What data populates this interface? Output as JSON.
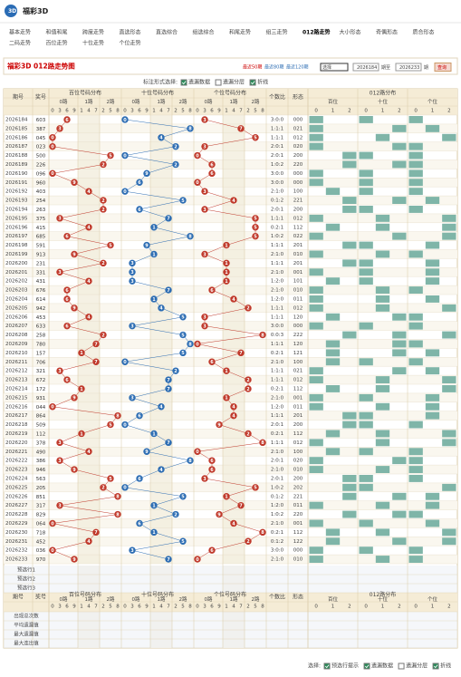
{
  "header": {
    "logo": "福彩3D"
  },
  "nav": [
    [
      {
        "text": "基本走势"
      },
      {
        "text": "和值和尾"
      },
      {
        "text": "跨度走势"
      },
      {
        "text": "直选形态"
      },
      {
        "text": "直选综合"
      },
      {
        "text": "组选综合"
      },
      {
        "text": "和尾走势"
      },
      {
        "text": "组三走势"
      },
      {
        "text": "012路走势",
        "active": true
      },
      {
        "text": "大小形态"
      },
      {
        "text": "奇偶形态"
      },
      {
        "text": "质合形态"
      }
    ],
    [
      {
        "text": "二码走势"
      },
      {
        "text": "百位走势"
      },
      {
        "text": "十位走势"
      },
      {
        "text": "个位走势"
      }
    ]
  ],
  "toolbar": {
    "title": "福彩3D 012路走势图",
    "periods": [
      "最近50期",
      "最近80期",
      "最近120期"
    ],
    "select": "选择",
    "from": "2026184",
    "between": "期至",
    "to": "2026233",
    "after": "期",
    "button": "查询"
  },
  "options": {
    "label": "标注形式选择:",
    "items": [
      {
        "text": "遗漏数据",
        "checked": true
      },
      {
        "text": "遗漏分层",
        "checked": false
      },
      {
        "text": "折线",
        "checked": true
      }
    ]
  },
  "table": {
    "columns": {
      "issue": "期号",
      "draw": "奖号",
      "positions": [
        "百位号码分布",
        "十位号码分布",
        "个位号码分布"
      ],
      "ratio": "个数比",
      "shape": "形态",
      "route": "012路分布"
    },
    "groups": [
      "0路",
      "1路",
      "2路"
    ],
    "digit_order": [
      0,
      3,
      6,
      9,
      1,
      4,
      7,
      2,
      5,
      8
    ],
    "route_positions": [
      "百位",
      "十位",
      "个位"
    ],
    "route_digits": [
      0,
      1,
      2
    ],
    "colors": [
      "#c0392b",
      "#2d6db3",
      "#c0392b"
    ],
    "route_color": "#7fb5a8",
    "rows": [
      {
        "issue": "2026184",
        "draw": [
          6,
          0,
          3
        ],
        "ratio": "3:0:0",
        "shape": "000"
      },
      {
        "issue": "2026185",
        "draw": [
          3,
          8,
          7
        ],
        "ratio": "1:1:1",
        "shape": "021"
      },
      {
        "issue": "2026186",
        "draw": [
          0,
          4,
          5
        ],
        "ratio": "1:1:1",
        "shape": "012"
      },
      {
        "issue": "2026187",
        "draw": [
          0,
          2,
          3
        ],
        "ratio": "2:0:1",
        "shape": "020"
      },
      {
        "issue": "2026188",
        "draw": [
          5,
          0,
          0
        ],
        "ratio": "2:0:1",
        "shape": "200"
      },
      {
        "issue": "2026189",
        "draw": [
          2,
          2,
          6
        ],
        "ratio": "1:0:2",
        "shape": "220"
      },
      {
        "issue": "2026190",
        "draw": [
          0,
          9,
          6
        ],
        "ratio": "3:0:0",
        "shape": "000"
      },
      {
        "issue": "2026191",
        "draw": [
          9,
          6,
          0
        ],
        "ratio": "3:0:0",
        "shape": "000"
      },
      {
        "issue": "2026192",
        "draw": [
          4,
          0,
          3
        ],
        "ratio": "2:1:0",
        "shape": "100"
      },
      {
        "issue": "2026193",
        "draw": [
          2,
          5,
          4
        ],
        "ratio": "0:1:2",
        "shape": "221"
      },
      {
        "issue": "2026194",
        "draw": [
          2,
          6,
          3
        ],
        "ratio": "2:0:1",
        "shape": "200"
      },
      {
        "issue": "2026195",
        "draw": [
          3,
          7,
          5
        ],
        "ratio": "1:1:1",
        "shape": "012"
      },
      {
        "issue": "2026196",
        "draw": [
          4,
          1,
          5
        ],
        "ratio": "0:2:1",
        "shape": "112"
      },
      {
        "issue": "2026197",
        "draw": [
          6,
          8,
          5
        ],
        "ratio": "1:0:2",
        "shape": "022"
      },
      {
        "issue": "2026198",
        "draw": [
          5,
          9,
          1
        ],
        "ratio": "1:1:1",
        "shape": "201"
      },
      {
        "issue": "2026199",
        "draw": [
          9,
          1,
          3
        ],
        "ratio": "2:1:0",
        "shape": "010"
      },
      {
        "issue": "2026200",
        "draw": [
          2,
          3,
          1
        ],
        "ratio": "1:1:1",
        "shape": "201"
      },
      {
        "issue": "2026201",
        "draw": [
          3,
          3,
          1
        ],
        "ratio": "2:1:0",
        "shape": "001"
      },
      {
        "issue": "2026202",
        "draw": [
          4,
          3,
          1
        ],
        "ratio": "1:2:0",
        "shape": "101"
      },
      {
        "issue": "2026203",
        "draw": [
          6,
          7,
          6
        ],
        "ratio": "2:1:0",
        "shape": "010"
      },
      {
        "issue": "2026204",
        "draw": [
          6,
          1,
          4
        ],
        "ratio": "1:2:0",
        "shape": "011"
      },
      {
        "issue": "2026205",
        "draw": [
          9,
          4,
          2
        ],
        "ratio": "1:1:1",
        "shape": "012"
      },
      {
        "issue": "2026206",
        "draw": [
          4,
          5,
          3
        ],
        "ratio": "1:1:1",
        "shape": "120"
      },
      {
        "issue": "2026207",
        "draw": [
          6,
          3,
          3
        ],
        "ratio": "3:0:0",
        "shape": "000"
      },
      {
        "issue": "2026208",
        "draw": [
          2,
          5,
          8
        ],
        "ratio": "0:0:3",
        "shape": "222"
      },
      {
        "issue": "2026209",
        "draw": [
          7,
          8,
          0
        ],
        "ratio": "1:1:1",
        "shape": "120"
      },
      {
        "issue": "2026210",
        "draw": [
          1,
          5,
          7
        ],
        "ratio": "0:2:1",
        "shape": "121"
      },
      {
        "issue": "2026211",
        "draw": [
          7,
          0,
          6
        ],
        "ratio": "2:1:0",
        "shape": "100"
      },
      {
        "issue": "2026212",
        "draw": [
          3,
          2,
          1
        ],
        "ratio": "1:1:1",
        "shape": "021"
      },
      {
        "issue": "2026213",
        "draw": [
          6,
          7,
          2
        ],
        "ratio": "1:1:1",
        "shape": "012"
      },
      {
        "issue": "2026214",
        "draw": [
          1,
          7,
          2
        ],
        "ratio": "0:2:1",
        "shape": "112"
      },
      {
        "issue": "2026215",
        "draw": [
          9,
          3,
          1
        ],
        "ratio": "2:1:0",
        "shape": "001"
      },
      {
        "issue": "2026216",
        "draw": [
          0,
          4,
          4
        ],
        "ratio": "1:2:0",
        "shape": "011"
      },
      {
        "issue": "2026217",
        "draw": [
          8,
          6,
          4
        ],
        "ratio": "1:1:1",
        "shape": "201"
      },
      {
        "issue": "2026218",
        "draw": [
          5,
          0,
          9
        ],
        "ratio": "2:0:1",
        "shape": "200"
      },
      {
        "issue": "2026219",
        "draw": [
          1,
          1,
          2
        ],
        "ratio": "0:2:1",
        "shape": "112"
      },
      {
        "issue": "2026220",
        "draw": [
          3,
          7,
          8
        ],
        "ratio": "1:1:1",
        "shape": "012"
      },
      {
        "issue": "2026221",
        "draw": [
          4,
          9,
          0
        ],
        "ratio": "2:1:0",
        "shape": "100"
      },
      {
        "issue": "2026222",
        "draw": [
          3,
          8,
          6
        ],
        "ratio": "2:0:1",
        "shape": "020"
      },
      {
        "issue": "2026223",
        "draw": [
          9,
          4,
          6
        ],
        "ratio": "2:1:0",
        "shape": "010"
      },
      {
        "issue": "2026224",
        "draw": [
          5,
          6,
          3
        ],
        "ratio": "2:0:1",
        "shape": "200"
      },
      {
        "issue": "2026225",
        "draw": [
          2,
          0,
          5
        ],
        "ratio": "1:0:2",
        "shape": "202"
      },
      {
        "issue": "2026226",
        "draw": [
          8,
          5,
          1
        ],
        "ratio": "0:1:2",
        "shape": "221"
      },
      {
        "issue": "2026227",
        "draw": [
          3,
          1,
          7
        ],
        "ratio": "1:2:0",
        "shape": "011"
      },
      {
        "issue": "2026228",
        "draw": [
          8,
          2,
          9
        ],
        "ratio": "1:0:2",
        "shape": "220"
      },
      {
        "issue": "2026229",
        "draw": [
          0,
          6,
          4
        ],
        "ratio": "2:1:0",
        "shape": "001"
      },
      {
        "issue": "2026230",
        "draw": [
          7,
          1,
          8
        ],
        "ratio": "0:2:1",
        "shape": "112"
      },
      {
        "issue": "2026231",
        "draw": [
          4,
          5,
          2
        ],
        "ratio": "0:1:2",
        "shape": "122"
      },
      {
        "issue": "2026232",
        "draw": [
          0,
          3,
          6
        ],
        "ratio": "3:0:0",
        "shape": "000"
      },
      {
        "issue": "2026233",
        "draw": [
          9,
          7,
          0
        ],
        "ratio": "2:1:0",
        "shape": "010"
      }
    ],
    "preselect": [
      "预选行1",
      "预选行2",
      "预选行3"
    ],
    "stats": [
      "出现总次数",
      "平均遗漏值",
      "最大遗漏值",
      "最大连出值"
    ]
  },
  "footer": {
    "label": "选择:",
    "items": [
      {
        "text": "预选行提示",
        "checked": true
      },
      {
        "text": "遗漏数据",
        "checked": true
      },
      {
        "text": "遗漏分层",
        "checked": false
      },
      {
        "text": "折线",
        "checked": true
      }
    ]
  }
}
